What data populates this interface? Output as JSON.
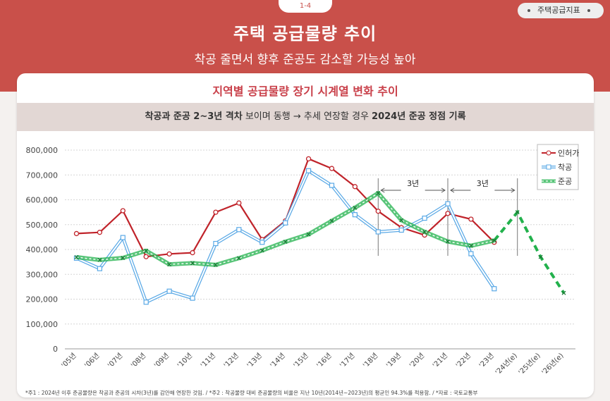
{
  "header": {
    "page_tab": "1-4",
    "tag": "주택공급지표",
    "title": "주택 공급물량 추이",
    "subtitle": "착공 줄면서 향후 준공도 감소할 가능성 높아"
  },
  "card": {
    "title": "지역별 공급물량 장기 시계열 변화 추이",
    "highlight": {
      "part1": "착공과 준공 2~3년 격차",
      "part2": " 보이며 동행 → 추세 연장할 경우 ",
      "part3": "2024년 준공 정점 기록"
    }
  },
  "chart_data": {
    "type": "line",
    "title": "",
    "categories": [
      "'05년",
      "'06년",
      "'07년",
      "'08년",
      "'09년",
      "'10년",
      "'11년",
      "'12년",
      "'13년",
      "'14년",
      "'15년",
      "'16년",
      "'17년",
      "'18년",
      "'19년",
      "'20년",
      "'21년",
      "'22년",
      "'23년",
      "'24년(e)",
      "'25년(e)",
      "'26년(e)"
    ],
    "y_ticks": [
      "0",
      "100,000",
      "200,000",
      "300,000",
      "400,000",
      "500,000",
      "600,000",
      "700,000",
      "800,000"
    ],
    "ylim": [
      0,
      800000
    ],
    "legend_position": "top-right",
    "series": [
      {
        "name": "인허가",
        "color": "#c0232a",
        "values": [
          464000,
          469000,
          556000,
          371000,
          382000,
          387000,
          550000,
          587000,
          440000,
          515000,
          765000,
          726000,
          653000,
          554000,
          488000,
          458000,
          545000,
          522000,
          429000,
          null,
          null,
          null
        ]
      },
      {
        "name": "착공",
        "color": "#5aa9e6",
        "values": [
          365000,
          323000,
          448000,
          188000,
          232000,
          204000,
          424000,
          480000,
          429000,
          507000,
          717000,
          658000,
          540000,
          471000,
          478000,
          526000,
          584000,
          383000,
          242000,
          null,
          null,
          null
        ]
      },
      {
        "name": "준공",
        "color": "#22b14c",
        "values": [
          369000,
          358000,
          366000,
          395000,
          340000,
          345000,
          338000,
          365000,
          396000,
          431000,
          461000,
          515000,
          568000,
          627000,
          518000,
          471000,
          432000,
          415000,
          436000,
          550000,
          370000,
          225000
        ],
        "projected_from_index": 18
      }
    ],
    "annotations": [
      {
        "label": "3년",
        "from": "'18년",
        "to": "'21년"
      },
      {
        "label": "3년",
        "from": "'21년",
        "to": "'24년(e)"
      }
    ]
  },
  "footnote": "*주1 : 2024년 이후 준공물량은 착공과 준공의 시차(3년)를 감안해 연장한 것임. / *주2 : 착공물량 대비 준공물량의 비율은 지난 10년(2014년~2023년)의 평균인 94.3%를 적용함. / *자료 : 국토교통부"
}
